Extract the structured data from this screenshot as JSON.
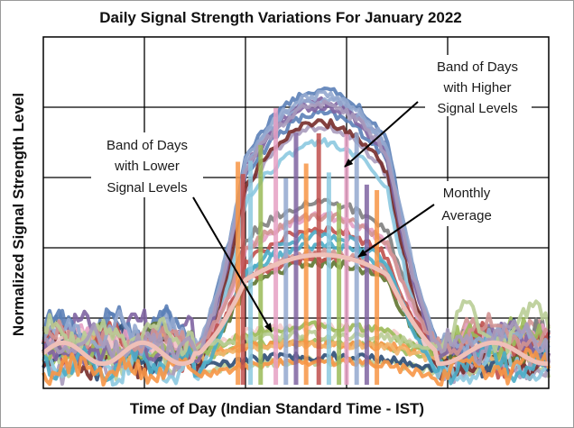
{
  "chart_data": {
    "type": "line",
    "title": "Daily Signal Strength Variations For January 2022",
    "xlabel": "Time of Day (Indian Standard Time - IST)",
    "ylabel": "Normalized Signal Strength Level",
    "x_tick_labels": "none",
    "y_tick_labels": "none",
    "grid": "on",
    "legend": "none",
    "x_grid_divisions": 5,
    "y_grid_divisions": 5,
    "annotations": [
      {
        "id": "lower",
        "lines": [
          "Band of Days",
          "with Lower",
          "Signal Levels"
        ]
      },
      {
        "id": "higher",
        "lines": [
          "Band of Days",
          "with Higher",
          "Signal Levels"
        ]
      },
      {
        "id": "average",
        "lines": [
          "Monthly",
          "Average"
        ]
      }
    ],
    "series_colors": [
      "#5b7fb7",
      "#c0504d",
      "#9bbb59",
      "#8064a2",
      "#4bacc6",
      "#f79646",
      "#93a9cf",
      "#d19392",
      "#b9cd96",
      "#a99bbd",
      "#7f7f7f",
      "#2c4d75",
      "#772c2a",
      "#5f7530",
      "#f2b56b",
      "#8cc9e0",
      "#e6a0c4",
      "#f4cccc"
    ],
    "average_color": "#efc0b8",
    "spike_colors": [
      "#f79646",
      "#c0504d",
      "#8cc9e0",
      "#9bbb59",
      "#e6a0c4",
      "#93a9cf",
      "#8064a2"
    ]
  }
}
